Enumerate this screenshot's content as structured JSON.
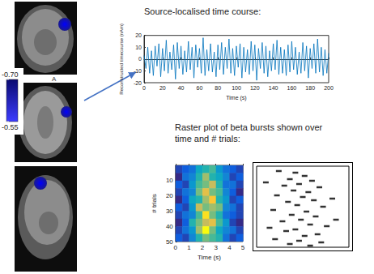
{
  "brain_map": {
    "orientation_label": "A",
    "colorbar": {
      "range": [
        -0.7,
        -0.55
      ],
      "ticks": [
        {
          "value": -0.7,
          "label": "-0.70"
        },
        {
          "value": -0.55,
          "label": "-0.55"
        }
      ]
    }
  },
  "chart_data": [
    {
      "type": "line",
      "title": "Source-localised time course:",
      "x_label": "Time (s)",
      "y_label": "Reconstructed timecourse (nAm)",
      "x": [
        0,
        2,
        4,
        6,
        8,
        10,
        12,
        14,
        16,
        18,
        20,
        22,
        24,
        26,
        28,
        30,
        32,
        34,
        36,
        38,
        40,
        42,
        44,
        46,
        48,
        50,
        52,
        54,
        56,
        58,
        60,
        62,
        64,
        66,
        68,
        70,
        72,
        74,
        76,
        78,
        80,
        82,
        84,
        86,
        88,
        90,
        92,
        94,
        96,
        98,
        100,
        102,
        104,
        106,
        108,
        110,
        112,
        114,
        116,
        118,
        120,
        122,
        124,
        126,
        128,
        130,
        132,
        134,
        136,
        138,
        140,
        142,
        144,
        146,
        148,
        150,
        152,
        154,
        156,
        158,
        160,
        162,
        164,
        166,
        168,
        170,
        172,
        174,
        176,
        178,
        180,
        182,
        184,
        186,
        188,
        190,
        192,
        194,
        196,
        198,
        200
      ],
      "values": [
        3,
        -8,
        10,
        -12,
        7,
        -14,
        11,
        -6,
        13,
        -15,
        9,
        -10,
        16,
        -12,
        6,
        -9,
        12,
        -17,
        14,
        -8,
        11,
        -13,
        7,
        -11,
        15,
        -9,
        10,
        -16,
        12,
        -7,
        9,
        -12,
        18,
        -14,
        8,
        -10,
        13,
        -11,
        6,
        -15,
        12,
        -9,
        14,
        -13,
        10,
        -8,
        17,
        -12,
        9,
        -14,
        11,
        -7,
        13,
        -16,
        10,
        -11,
        8,
        -13,
        15,
        -10,
        12,
        -18,
        9,
        -8,
        14,
        -12,
        11,
        -15,
        7,
        -10,
        13,
        -9,
        16,
        -13,
        10,
        -12,
        8,
        -14,
        12,
        -11,
        15,
        -9,
        10,
        -13,
        6,
        -12,
        14,
        -10,
        11,
        -16,
        9,
        -8,
        13,
        -12,
        17,
        -11,
        10,
        -14,
        8,
        -12,
        5
      ],
      "color": "#0072bd",
      "xlim": [
        0,
        200
      ],
      "xticks": [
        0,
        20,
        40,
        60,
        80,
        100,
        120,
        140,
        160,
        180,
        200
      ],
      "ylim": [
        -20,
        20
      ],
      "yticks": [
        -20,
        -10,
        0,
        10,
        20
      ],
      "grid": false
    },
    {
      "type": "heatmap",
      "title": "Raster plot of beta bursts shown over time and # trials:",
      "x_label": "Time (s)",
      "y_label": "# trials",
      "x": [
        0.25,
        0.75,
        1.25,
        1.75,
        2.25,
        2.75,
        3.25,
        3.75,
        4.25,
        4.75
      ],
      "y": [
        2.5,
        7.5,
        12.5,
        17.5,
        22.5,
        27.5,
        32.5,
        37.5,
        42.5,
        47.5
      ],
      "values": [
        [
          0.2,
          0.25,
          0.3,
          0.45,
          0.5,
          0.55,
          0.4,
          0.3,
          0.25,
          0.2
        ],
        [
          0.15,
          0.3,
          0.35,
          0.5,
          0.65,
          0.5,
          0.45,
          0.35,
          0.2,
          0.25
        ],
        [
          0.25,
          0.2,
          0.4,
          0.55,
          0.6,
          0.7,
          0.5,
          0.3,
          0.3,
          0.2
        ],
        [
          0.2,
          0.3,
          0.35,
          0.6,
          0.75,
          0.6,
          0.55,
          0.35,
          0.25,
          0.15
        ],
        [
          0.15,
          0.25,
          0.45,
          0.5,
          0.65,
          0.8,
          0.5,
          0.4,
          0.2,
          0.25
        ],
        [
          0.25,
          0.2,
          0.4,
          0.7,
          0.6,
          0.65,
          0.6,
          0.35,
          0.3,
          0.2
        ],
        [
          0.2,
          0.3,
          0.35,
          0.55,
          0.85,
          0.6,
          0.5,
          0.3,
          0.25,
          0.2
        ],
        [
          0.15,
          0.25,
          0.5,
          0.6,
          0.7,
          0.75,
          0.55,
          0.4,
          0.2,
          0.15
        ],
        [
          0.2,
          0.3,
          0.4,
          0.65,
          0.9,
          0.6,
          0.45,
          0.35,
          0.3,
          0.2
        ],
        [
          0.25,
          0.2,
          0.35,
          0.5,
          0.6,
          0.55,
          0.5,
          0.3,
          0.2,
          0.25
        ]
      ],
      "xlim": [
        0,
        5
      ],
      "xticks": [
        0,
        1,
        2,
        3,
        4,
        5
      ],
      "ylim": [
        0,
        50
      ],
      "yticks": [
        10,
        20,
        30,
        40,
        50
      ],
      "grid": false
    },
    {
      "type": "scatter",
      "x": [
        1.2,
        2.1,
        2.6,
        1.8,
        3.0,
        2.3,
        1.5,
        3.4,
        2.0,
        2.8,
        1.1,
        2.5,
        3.1,
        1.7,
        2.2,
        3.6,
        0.9,
        2.7,
        1.9,
        3.2,
        2.4,
        1.4,
        2.9,
        3.8,
        2.1,
        1.6,
        3.3,
        2.6,
        1.0,
        2.3,
        3.5,
        1.8,
        2.9,
        0.7,
        4.1,
        4.3,
        0.5
      ],
      "y": [
        3,
        4,
        6,
        8,
        9,
        11,
        12,
        13,
        15,
        16,
        18,
        19,
        21,
        22,
        24,
        25,
        27,
        28,
        30,
        31,
        33,
        34,
        36,
        37,
        39,
        40,
        42,
        43,
        45,
        46,
        47,
        48,
        49,
        38,
        20,
        33,
        10
      ],
      "color": "#000000",
      "marker": "rect",
      "xlim": [
        0,
        5
      ],
      "ylim": [
        0,
        50
      ],
      "tick_labels": false
    }
  ]
}
